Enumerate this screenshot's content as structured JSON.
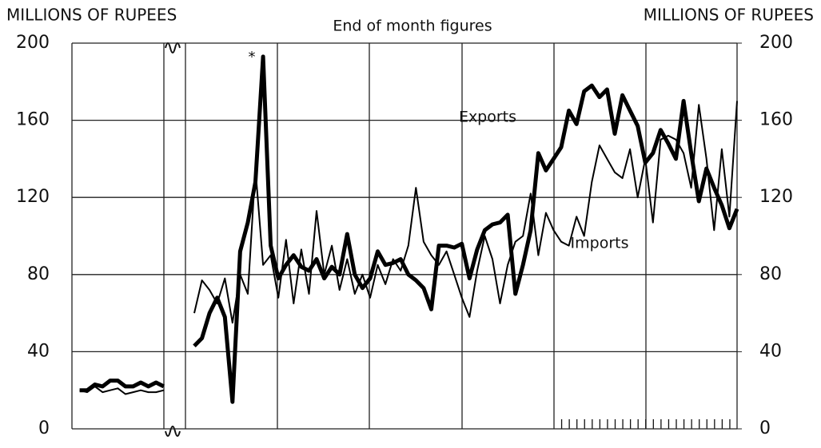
{
  "chart_data": {
    "type": "line",
    "title": "End of month figures",
    "y_label": "MILLIONS OF RUPEES",
    "y2_label": "MILLIONS OF RUPEES",
    "annotation": "*",
    "categories": [
      null,
      null,
      null,
      null,
      null,
      null,
      null,
      null,
      null,
      null,
      null,
      null,
      null,
      null,
      null,
      null,
      null,
      null,
      null,
      null,
      null,
      null,
      null,
      null,
      null,
      null,
      null,
      null,
      null,
      null,
      null,
      null,
      null,
      null,
      null,
      null,
      null,
      null,
      null,
      null,
      null,
      null,
      null,
      null,
      null,
      null,
      null,
      null,
      null,
      null,
      null,
      null,
      null,
      null,
      null,
      null,
      null,
      null,
      null,
      null,
      null,
      null,
      null,
      null,
      null,
      null,
      null,
      null,
      null,
      null,
      null,
      null,
      null,
      null,
      null,
      null,
      null,
      null,
      null,
      null,
      null,
      null,
      null,
      null,
      null,
      null,
      null,
      null
    ],
    "series": [
      {
        "name": "Exports",
        "color": "#000000",
        "values": [
          null,
          20,
          20,
          23,
          22,
          25,
          25,
          22,
          22,
          24,
          22,
          24,
          22,
          null,
          null,
          null,
          43,
          47,
          60,
          68,
          58,
          14,
          92,
          107,
          128,
          193,
          95,
          78,
          85,
          90,
          84,
          82,
          88,
          78,
          84,
          80,
          101,
          80,
          73,
          78,
          92,
          85,
          86,
          88,
          80,
          77,
          73,
          62,
          95,
          95,
          94,
          96,
          78,
          93,
          103,
          106,
          107,
          111,
          70,
          85,
          103,
          143,
          134,
          140,
          146,
          165,
          158,
          175,
          178,
          172,
          176,
          153,
          173,
          165,
          157,
          138,
          143,
          155,
          148,
          140,
          170,
          143,
          118,
          135,
          125,
          116,
          104,
          114
        ]
      },
      {
        "name": "Imports",
        "color": "#000000",
        "values": [
          null,
          20,
          19,
          22,
          19,
          20,
          21,
          18,
          19,
          20,
          19,
          19,
          20,
          null,
          null,
          null,
          60,
          77,
          72,
          65,
          78,
          55,
          80,
          70,
          135,
          85,
          90,
          68,
          98,
          65,
          93,
          70,
          113,
          80,
          95,
          72,
          88,
          70,
          80,
          68,
          85,
          75,
          88,
          82,
          95,
          125,
          97,
          90,
          85,
          92,
          80,
          68,
          58,
          82,
          100,
          88,
          65,
          85,
          97,
          100,
          122,
          90,
          112,
          103,
          97,
          95,
          110,
          100,
          128,
          147,
          140,
          133,
          130,
          145,
          120,
          140,
          107,
          150,
          152,
          150,
          143,
          125,
          168,
          140,
          103,
          145,
          110,
          170
        ]
      }
    ],
    "ylim": [
      0,
      200
    ],
    "yticks": [
      0,
      40,
      80,
      120,
      160,
      200
    ],
    "y2lim": [
      0,
      200
    ],
    "y2ticks": [
      0,
      40,
      80,
      120,
      160,
      200
    ],
    "grid": true
  }
}
